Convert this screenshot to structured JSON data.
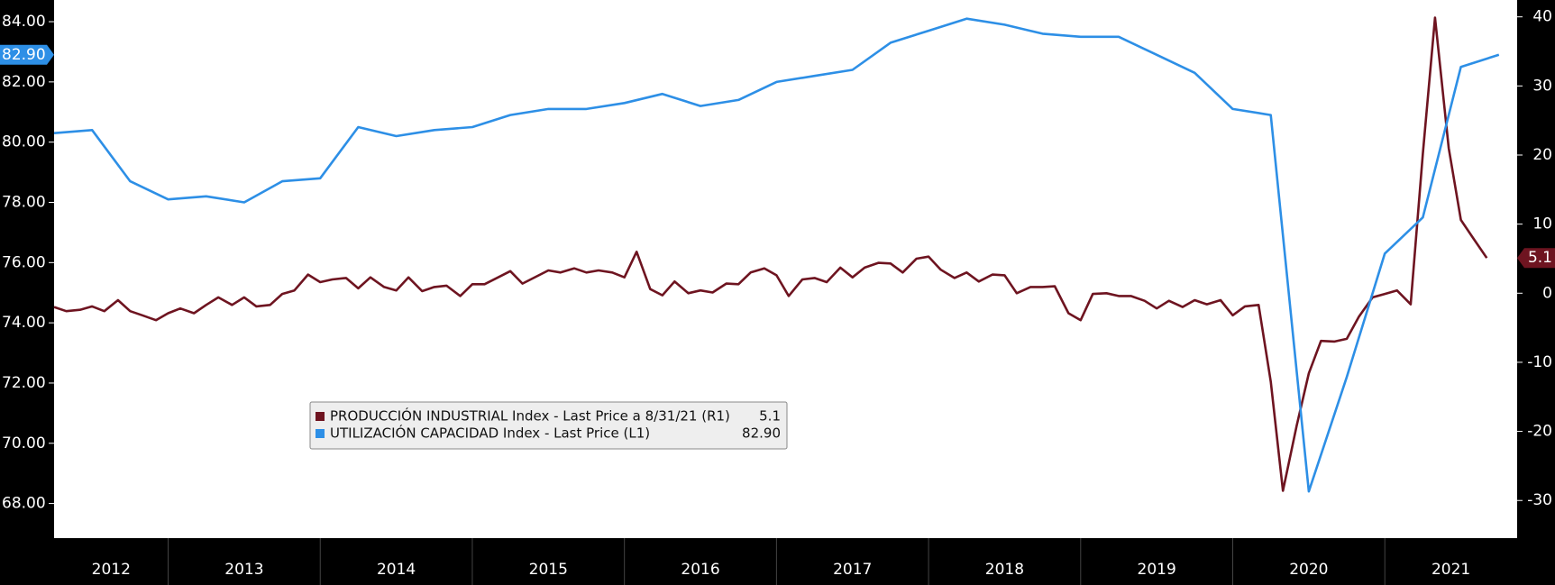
{
  "chart_data": {
    "type": "line",
    "xlim": [
      2012.25,
      2021.87
    ],
    "xticks": [
      2012,
      2013,
      2014,
      2015,
      2016,
      2017,
      2018,
      2019,
      2020,
      2021
    ],
    "ylim": [
      66.85,
      84.72
    ],
    "yticks": [
      {
        "value": 68,
        "label": "68.00"
      },
      {
        "value": 70,
        "label": "70.00"
      },
      {
        "value": 72,
        "label": "72.00"
      },
      {
        "value": 74,
        "label": "74.00"
      },
      {
        "value": 76,
        "label": "76.00"
      },
      {
        "value": 78,
        "label": "78.00"
      },
      {
        "value": 80,
        "label": "80.00"
      },
      {
        "value": 82,
        "label": "82.00"
      },
      {
        "value": 84,
        "label": "84.00"
      }
    ],
    "y2lim": [
      -35.45,
      42.44
    ],
    "y2ticks": [
      -30,
      -20,
      -10,
      0,
      10,
      20,
      30,
      40
    ],
    "series": [
      {
        "name": "PRODUCCIÓN INDUSTRIAL Index - Last Price a 8/31/21 (R1)",
        "color": "#6e1420",
        "axis": "y2",
        "last_label": "5.1",
        "x": [
          2012.25,
          2012.33,
          2012.42,
          2012.5,
          2012.58,
          2012.67,
          2012.75,
          2012.83,
          2012.92,
          2013,
          2013.08,
          2013.17,
          2013.25,
          2013.33,
          2013.42,
          2013.5,
          2013.58,
          2013.67,
          2013.75,
          2013.83,
          2013.92,
          2014,
          2014.08,
          2014.17,
          2014.25,
          2014.33,
          2014.42,
          2014.5,
          2014.58,
          2014.67,
          2014.75,
          2014.83,
          2014.92,
          2015,
          2015.08,
          2015.17,
          2015.25,
          2015.33,
          2015.42,
          2015.5,
          2015.58,
          2015.67,
          2015.75,
          2015.83,
          2015.92,
          2016,
          2016.08,
          2016.17,
          2016.25,
          2016.33,
          2016.42,
          2016.5,
          2016.58,
          2016.67,
          2016.75,
          2016.83,
          2016.92,
          2017,
          2017.08,
          2017.17,
          2017.25,
          2017.33,
          2017.42,
          2017.5,
          2017.58,
          2017.67,
          2017.75,
          2017.83,
          2017.92,
          2018,
          2018.08,
          2018.17,
          2018.25,
          2018.33,
          2018.42,
          2018.5,
          2018.58,
          2018.67,
          2018.75,
          2018.83,
          2018.92,
          2019,
          2019.08,
          2019.17,
          2019.25,
          2019.33,
          2019.42,
          2019.5,
          2019.58,
          2019.67,
          2019.75,
          2019.83,
          2019.92,
          2020,
          2020.08,
          2020.17,
          2020.25,
          2020.33,
          2020.42,
          2020.5,
          2020.58,
          2020.67,
          2020.75,
          2020.83,
          2020.92,
          2021,
          2021.08,
          2021.17,
          2021.25,
          2021.33,
          2021.42,
          2021.5,
          2021.58,
          2021.67
        ],
        "values": [
          -2.0,
          -2.6,
          -2.4,
          -1.9,
          -2.6,
          -1.0,
          -2.6,
          -3.2,
          -3.9,
          -2.9,
          -2.2,
          -2.9,
          -1.7,
          -0.6,
          -1.7,
          -0.6,
          -1.9,
          -1.7,
          -0.1,
          0.4,
          2.7,
          1.6,
          2.0,
          2.2,
          0.7,
          2.3,
          0.9,
          0.4,
          2.3,
          0.3,
          0.9,
          1.1,
          -0.4,
          1.3,
          1.3,
          2.3,
          3.2,
          1.4,
          2.4,
          3.3,
          3.0,
          3.6,
          3.0,
          3.3,
          3.0,
          2.3,
          6.0,
          0.6,
          -0.3,
          1.7,
          0.0,
          0.4,
          0.1,
          1.4,
          1.3,
          3.0,
          3.6,
          2.6,
          -0.4,
          2.0,
          2.2,
          1.6,
          3.7,
          2.3,
          3.7,
          4.4,
          4.3,
          3.0,
          5.0,
          5.3,
          3.4,
          2.2,
          3.0,
          1.7,
          2.7,
          2.6,
          0.0,
          0.9,
          0.9,
          1.0,
          -2.9,
          -3.9,
          -0.1,
          0.0,
          -0.4,
          -0.4,
          -1.1,
          -2.2,
          -1.1,
          -2.0,
          -1.0,
          -1.6,
          -1.0,
          -3.2,
          -1.9,
          -1.7,
          -12.8,
          -28.6,
          -19.2,
          -11.6,
          -6.9,
          -7.0,
          -6.6,
          -3.4,
          -0.6,
          -0.1,
          0.4,
          -1.6,
          20.2,
          39.9,
          21.0,
          10.6,
          8.0,
          5.1
        ]
      },
      {
        "name": "UTILIZACIÓN CAPACIDAD Index - Last Price (L1)",
        "color": "#2d8fe6",
        "axis": "y",
        "last_label": "82.90",
        "x": [
          2012.25,
          2012.5,
          2012.75,
          2013,
          2013.25,
          2013.5,
          2013.75,
          2014,
          2014.25,
          2014.5,
          2014.75,
          2015,
          2015.25,
          2015.5,
          2015.75,
          2016,
          2016.25,
          2016.5,
          2016.75,
          2017,
          2017.25,
          2017.5,
          2017.75,
          2018,
          2018.25,
          2018.5,
          2018.75,
          2019,
          2019.25,
          2019.5,
          2019.75,
          2020,
          2020.25,
          2020.5,
          2020.75,
          2021,
          2021.25,
          2021.5,
          2021.75
        ],
        "values": [
          80.3,
          80.4,
          78.7,
          78.1,
          78.2,
          78.0,
          78.7,
          78.8,
          80.5,
          80.2,
          80.4,
          80.5,
          80.9,
          81.1,
          81.1,
          81.3,
          81.6,
          81.2,
          81.4,
          82.0,
          82.2,
          82.4,
          83.3,
          83.7,
          84.1,
          83.9,
          83.6,
          83.5,
          83.5,
          82.9,
          82.3,
          81.1,
          80.9,
          68.4,
          72.2,
          76.3,
          77.5,
          82.5,
          82.9
        ]
      }
    ]
  }
}
